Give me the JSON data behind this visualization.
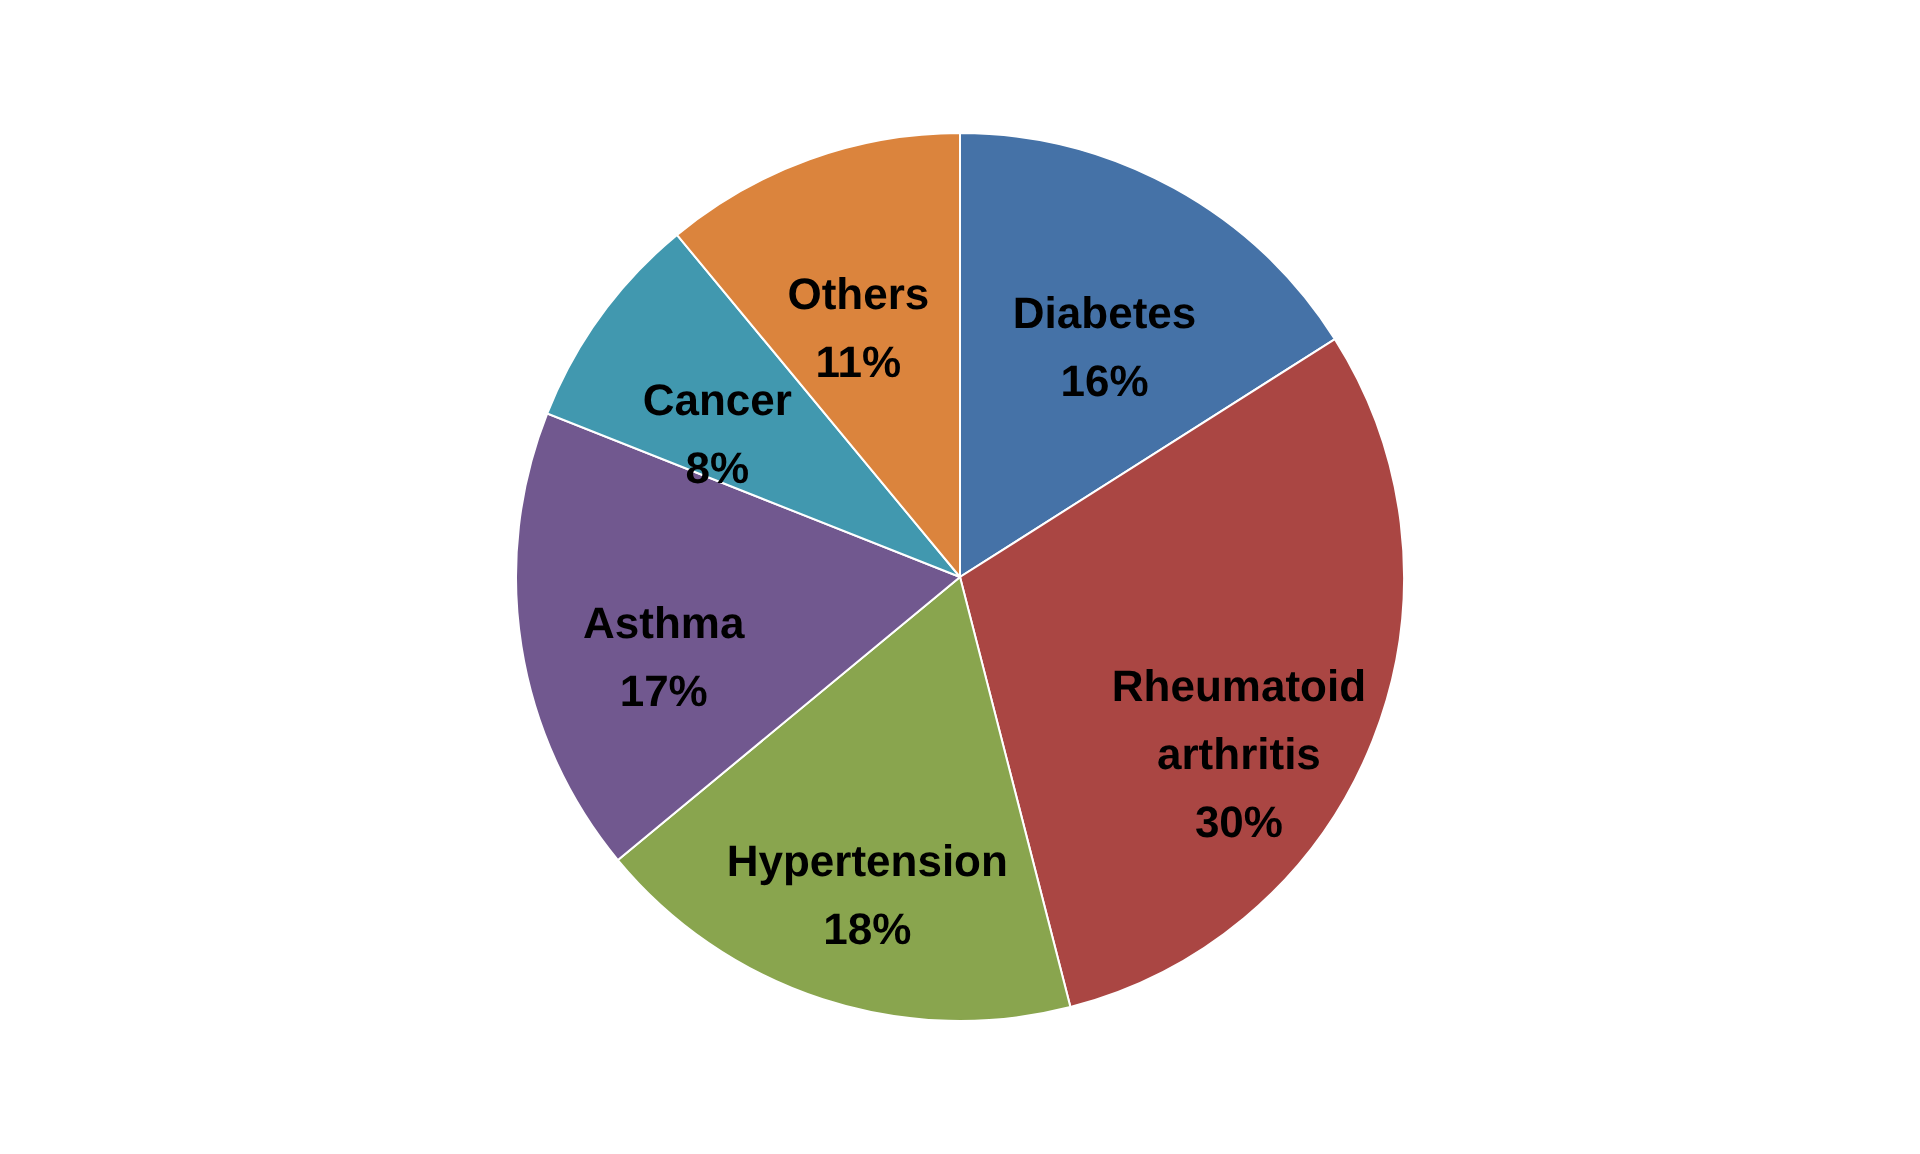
{
  "chart_data": {
    "type": "pie",
    "categories": [
      "Diabetes",
      "Rheumatoid arthritis",
      "Hypertension",
      "Asthma",
      "Cancer",
      "Others"
    ],
    "values": [
      16,
      30,
      18,
      17,
      8,
      11
    ],
    "colors": [
      "#4572a7",
      "#aa4643",
      "#89a54e",
      "#71588f",
      "#4198af",
      "#db843d"
    ],
    "value_labels": [
      "16%",
      "30%",
      "18%",
      "17%",
      "8%",
      "11%"
    ]
  }
}
